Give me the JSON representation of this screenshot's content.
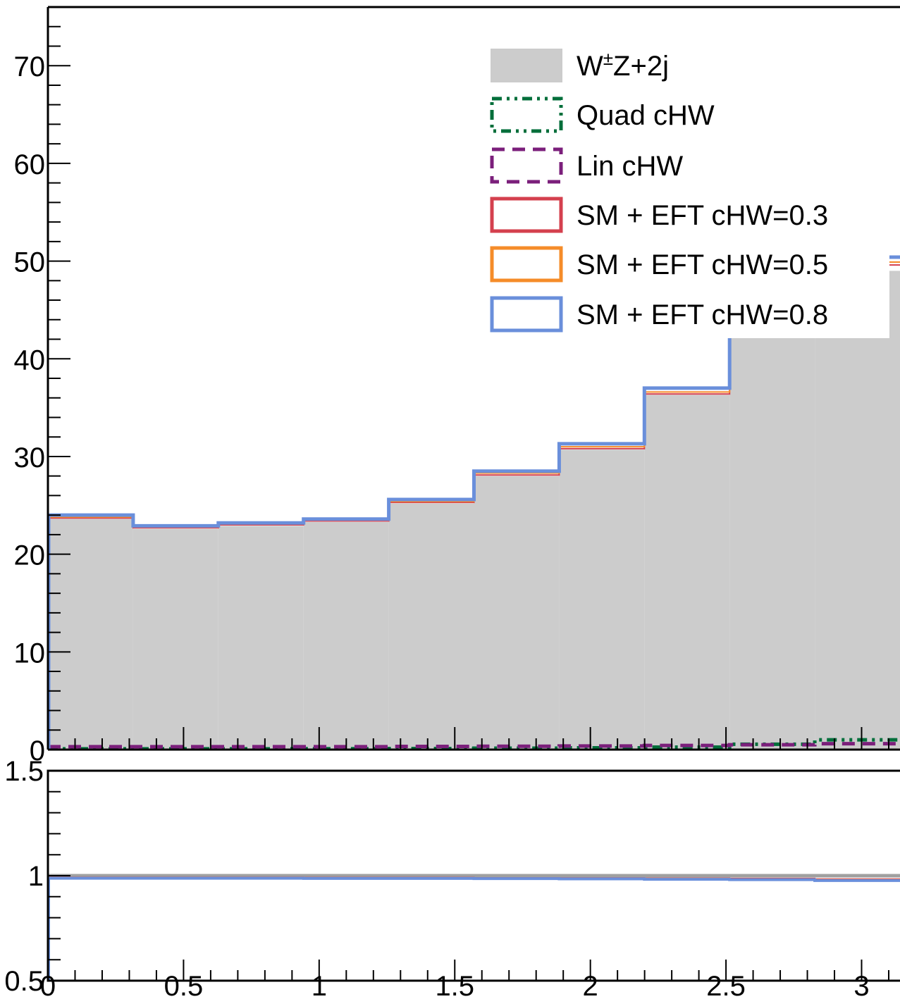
{
  "chart_data": [
    {
      "type": "step-histogram",
      "panel": "main",
      "ylim": [
        0,
        76
      ],
      "xlim": [
        0,
        3.1416
      ],
      "bin_edges": [
        0,
        0.3142,
        0.6283,
        0.9425,
        1.2566,
        1.5708,
        1.885,
        2.1991,
        2.5133,
        2.8274,
        3.1416
      ],
      "yticks_major": [
        0,
        10,
        20,
        30,
        40,
        50,
        60,
        70
      ],
      "ytick_labels": [
        "0",
        "10",
        "20",
        "30",
        "40",
        "50",
        "60",
        "70"
      ],
      "ytick_minor_step": 2,
      "series": [
        {
          "name": "W±Z+2j",
          "name_main": "W",
          "name_sup": "±",
          "name_rest": "Z+2j",
          "style": "filled",
          "color": "#cccccc",
          "values": [
            23.6,
            22.6,
            22.9,
            23.3,
            25.2,
            28.0,
            30.7,
            36.3,
            46.0,
            49.0
          ]
        },
        {
          "name": "Quad cHW",
          "style": "dash-dot-dot",
          "color": "#006e3a",
          "values": [
            0.08,
            0.08,
            0.08,
            0.09,
            0.11,
            0.14,
            0.18,
            0.25,
            0.55,
            1.0
          ]
        },
        {
          "name": "Lin cHW",
          "style": "dashed",
          "color": "#7b1f7b",
          "values": [
            0.3,
            0.3,
            0.3,
            0.3,
            0.32,
            0.34,
            0.37,
            0.42,
            0.5,
            0.6
          ]
        },
        {
          "name": "SM + EFT cHW=0.3",
          "style": "solid",
          "color": "#d4404e",
          "values": [
            23.7,
            22.7,
            23.0,
            23.4,
            25.3,
            28.1,
            30.8,
            36.4,
            46.3,
            49.6
          ]
        },
        {
          "name": "SM + EFT cHW=0.5",
          "style": "solid",
          "color": "#f58c29",
          "values": [
            23.8,
            22.8,
            23.1,
            23.5,
            25.4,
            28.3,
            31.0,
            36.6,
            46.6,
            49.9
          ]
        },
        {
          "name": "SM + EFT cHW=0.8",
          "style": "solid",
          "color": "#6a8fdb",
          "values": [
            24.0,
            22.9,
            23.2,
            23.6,
            25.6,
            28.5,
            31.3,
            37.0,
            47.2,
            50.4
          ]
        }
      ]
    },
    {
      "type": "ratio-step",
      "panel": "ratio",
      "ylim": [
        0.5,
        1.5
      ],
      "xlim": [
        0,
        3.1416
      ],
      "yticks_major": [
        0.5,
        1,
        1.5
      ],
      "ytick_labels": [
        "0.5",
        "1",
        "1.5"
      ],
      "xticks_major": [
        0,
        0.5,
        1,
        1.5,
        2,
        2.5,
        3
      ],
      "xtick_labels": [
        "0",
        "0.5",
        "1",
        "1.5",
        "2",
        "2.5",
        "3"
      ],
      "reference_line": {
        "value": 1.0,
        "color": "#a0a0a0"
      },
      "series": [
        {
          "name": "SM + EFT cHW=0.3",
          "color": "#d4404e",
          "values": [
            0.992,
            0.992,
            0.992,
            0.991,
            0.991,
            0.99,
            0.989,
            0.988,
            0.987,
            0.984
          ]
        },
        {
          "name": "SM + EFT cHW=0.5",
          "color": "#f58c29",
          "values": [
            0.99,
            0.99,
            0.99,
            0.989,
            0.989,
            0.988,
            0.987,
            0.986,
            0.984,
            0.981
          ]
        },
        {
          "name": "SM + EFT cHW=0.8",
          "color": "#6a8fdb",
          "values": [
            0.988,
            0.988,
            0.988,
            0.987,
            0.987,
            0.986,
            0.985,
            0.983,
            0.981,
            0.977
          ]
        }
      ]
    }
  ]
}
